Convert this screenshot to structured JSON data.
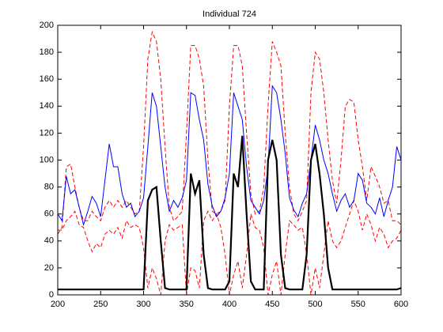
{
  "chart_data": {
    "type": "line",
    "title": "Individual 724",
    "x": [
      200,
      205,
      210,
      215,
      220,
      225,
      230,
      235,
      240,
      245,
      250,
      255,
      260,
      265,
      270,
      275,
      280,
      285,
      290,
      295,
      300,
      305,
      310,
      315,
      320,
      325,
      330,
      335,
      340,
      345,
      350,
      355,
      360,
      365,
      370,
      375,
      380,
      385,
      390,
      395,
      400,
      405,
      410,
      415,
      420,
      425,
      430,
      435,
      440,
      445,
      450,
      455,
      460,
      465,
      470,
      475,
      480,
      485,
      490,
      495,
      500,
      505,
      510,
      515,
      520,
      525,
      530,
      535,
      540,
      545,
      550,
      555,
      560,
      565,
      570,
      575,
      580,
      585,
      590,
      595,
      600
    ],
    "series": [
      {
        "color": "#ff0000",
        "dash": true,
        "width": 1,
        "values": [
          45,
          50,
          95,
          97,
          80,
          65,
          55,
          55,
          62,
          58,
          55,
          65,
          70,
          65,
          70,
          65,
          70,
          65,
          60,
          62,
          110,
          175,
          195,
          188,
          160,
          110,
          65,
          55,
          58,
          62,
          120,
          185,
          185,
          175,
          155,
          100,
          62,
          60,
          62,
          70,
          140,
          185,
          185,
          170,
          120,
          75,
          60,
          62,
          80,
          140,
          188,
          180,
          170,
          120,
          80,
          60,
          55,
          62,
          70,
          150,
          180,
          175,
          150,
          115,
          85,
          68,
          100,
          140,
          145,
          143,
          115,
          95,
          70,
          95,
          88,
          80,
          68,
          70,
          55,
          55,
          52
        ]
      },
      {
        "color": "#ff0000",
        "dash": true,
        "width": 1,
        "values": [
          48,
          48,
          55,
          58,
          62,
          52,
          50,
          40,
          32,
          38,
          35,
          45,
          48,
          45,
          50,
          42,
          55,
          50,
          52,
          50,
          35,
          5,
          20,
          12,
          0,
          40,
          52,
          48,
          50,
          52,
          0,
          20,
          18,
          5,
          55,
          62,
          55,
          60,
          50,
          30,
          0,
          15,
          25,
          5,
          30,
          60,
          50,
          48,
          35,
          0,
          15,
          25,
          0,
          30,
          55,
          52,
          48,
          50,
          30,
          0,
          20,
          5,
          30,
          55,
          40,
          35,
          40,
          50,
          60,
          70,
          62,
          48,
          60,
          52,
          40,
          50,
          45,
          35,
          40,
          42,
          48
        ]
      },
      {
        "color": "#0000ff",
        "dash": false,
        "width": 1,
        "values": [
          60,
          55,
          88,
          75,
          78,
          65,
          52,
          62,
          73,
          68,
          58,
          85,
          112,
          95,
          95,
          75,
          65,
          68,
          58,
          62,
          72,
          110,
          150,
          140,
          110,
          80,
          62,
          70,
          65,
          72,
          85,
          150,
          148,
          130,
          115,
          82,
          66,
          58,
          62,
          72,
          90,
          150,
          140,
          130,
          95,
          70,
          65,
          60,
          70,
          95,
          155,
          150,
          130,
          105,
          72,
          63,
          58,
          68,
          75,
          100,
          126,
          115,
          100,
          90,
          75,
          62,
          70,
          75,
          65,
          70,
          90,
          85,
          68,
          65,
          60,
          72,
          58,
          70,
          80,
          110,
          100
        ]
      },
      {
        "color": "#000000",
        "dash": false,
        "width": 2.2,
        "values": [
          4,
          4,
          4,
          4,
          4,
          4,
          4,
          4,
          4,
          4,
          4,
          4,
          4,
          4,
          4,
          4,
          4,
          4,
          4,
          4,
          4,
          70,
          78,
          80,
          40,
          5,
          4,
          4,
          4,
          4,
          4,
          90,
          75,
          85,
          30,
          5,
          4,
          4,
          4,
          4,
          10,
          90,
          80,
          118,
          60,
          10,
          4,
          4,
          4,
          100,
          115,
          100,
          30,
          5,
          4,
          4,
          4,
          4,
          30,
          100,
          112,
          90,
          60,
          20,
          4,
          4,
          4,
          4,
          4,
          4,
          4,
          4,
          4,
          4,
          4,
          4,
          4,
          4,
          4,
          4,
          5
        ]
      }
    ],
    "xlim": [
      200,
      600
    ],
    "xticks": [
      200,
      250,
      300,
      350,
      400,
      450,
      500,
      550,
      600
    ],
    "ylim": [
      0,
      200
    ],
    "yticks": [
      0,
      20,
      40,
      60,
      80,
      100,
      120,
      140,
      160,
      180,
      200
    ]
  }
}
